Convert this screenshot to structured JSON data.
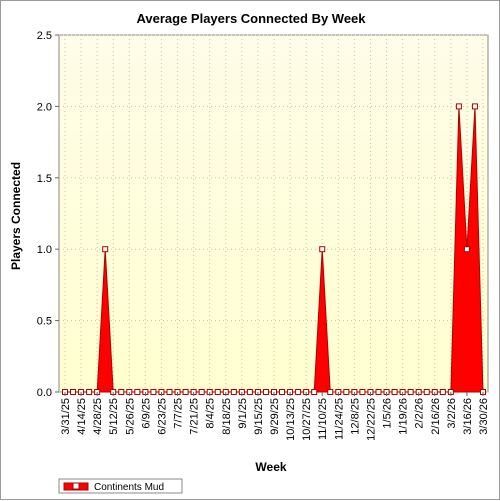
{
  "chart_data": {
    "type": "area",
    "title": "Average Players Connected By Week",
    "xlabel": "Week",
    "ylabel": "Players Connected",
    "ylim": [
      0,
      2.5
    ],
    "yticks": [
      "0.0",
      "0.5",
      "1.0",
      "1.5",
      "2.0",
      "2.5"
    ],
    "x_tick_labels": [
      "3/31/25",
      "4/14/25",
      "4/28/25",
      "5/12/25",
      "5/26/25",
      "6/9/25",
      "6/23/25",
      "7/7/25",
      "7/21/25",
      "8/4/25",
      "8/18/25",
      "9/1/25",
      "9/15/25",
      "9/29/25",
      "10/13/25",
      "10/27/25",
      "11/10/25",
      "11/24/25",
      "12/8/25",
      "12/22/25",
      "1/5/26",
      "1/19/26",
      "2/2/26",
      "2/16/26",
      "3/2/26",
      "3/16/26",
      "3/30/26"
    ],
    "grid": true,
    "legend_position": "bottom-left",
    "colors": {
      "series": "#ff0000",
      "series_edge": "#b00000",
      "plot_background_top": "#fffce8",
      "plot_background_bottom": "#ffffd0",
      "grid": "#c8c8a0"
    },
    "series": [
      {
        "name": "Continents Mud",
        "x": [
          "3/31/25",
          "4/7/25",
          "4/14/25",
          "4/21/25",
          "4/28/25",
          "5/5/25",
          "5/12/25",
          "5/19/25",
          "5/26/25",
          "6/2/25",
          "6/9/25",
          "6/16/25",
          "6/23/25",
          "6/30/25",
          "7/7/25",
          "7/14/25",
          "7/21/25",
          "7/28/25",
          "8/4/25",
          "8/11/25",
          "8/18/25",
          "8/25/25",
          "9/1/25",
          "9/8/25",
          "9/15/25",
          "9/22/25",
          "9/29/25",
          "10/6/25",
          "10/13/25",
          "10/20/25",
          "10/27/25",
          "11/3/25",
          "11/10/25",
          "11/17/25",
          "11/24/25",
          "12/1/25",
          "12/8/25",
          "12/15/25",
          "12/22/25",
          "12/29/25",
          "1/5/26",
          "1/12/26",
          "1/19/26",
          "1/26/26",
          "2/2/26",
          "2/9/26",
          "2/16/26",
          "2/23/26",
          "3/2/26",
          "3/9/26",
          "3/16/26",
          "3/23/26",
          "3/30/26"
        ],
        "values": [
          0,
          0,
          0,
          0,
          0,
          1,
          0,
          0,
          0,
          0,
          0,
          0,
          0,
          0,
          0,
          0,
          0,
          0,
          0,
          0,
          0,
          0,
          0,
          0,
          0,
          0,
          0,
          0,
          0,
          0,
          0,
          0,
          1,
          0,
          0,
          0,
          0,
          0,
          0,
          0,
          0,
          0,
          0,
          0,
          0,
          0,
          0,
          0,
          0,
          2,
          1,
          2,
          0
        ]
      }
    ]
  }
}
